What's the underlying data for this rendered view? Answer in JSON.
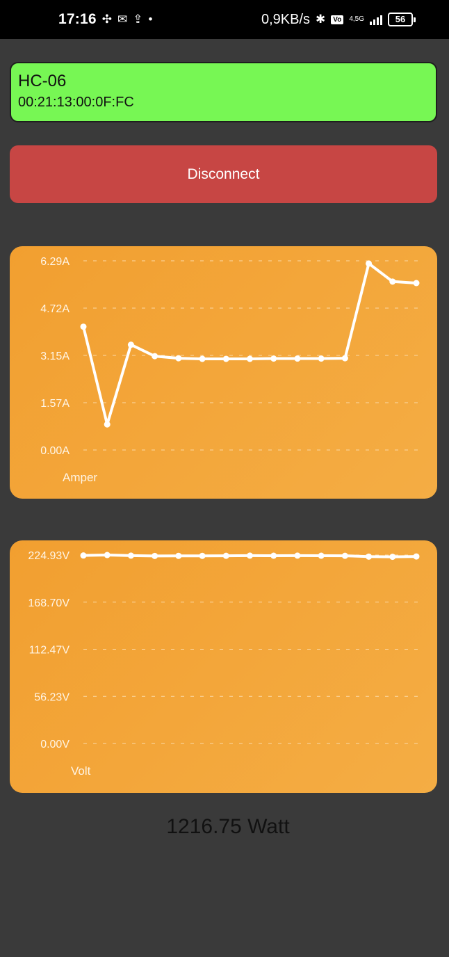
{
  "status_bar": {
    "time": "17:16",
    "speed": "0,9KB/s",
    "network": "4,5G",
    "battery": "56"
  },
  "device": {
    "name": "HC-06",
    "mac": "00:21:13:00:0F:FC"
  },
  "actions": {
    "disconnect_label": "Disconnect"
  },
  "colors": {
    "device_card": "#77f754",
    "disconnect": "#c74644",
    "chart_bg": "#f3a63a",
    "background": "#3a3a3a"
  },
  "chart_data": [
    {
      "type": "line",
      "xlabel": "Amper",
      "y_ticks": [
        "0.00A",
        "1.57A",
        "3.15A",
        "4.72A",
        "6.29A"
      ],
      "ylim": [
        0,
        6.29
      ],
      "grid": true,
      "series": [
        {
          "values": [
            4.1,
            0.85,
            3.5,
            3.12,
            3.05,
            3.03,
            3.03,
            3.03,
            3.04,
            3.04,
            3.04,
            3.05,
            6.2,
            5.6,
            5.55
          ]
        }
      ]
    },
    {
      "type": "line",
      "xlabel": "Volt",
      "y_ticks": [
        "0.00V",
        "56.23V",
        "112.47V",
        "168.70V",
        "224.93V"
      ],
      "ylim": [
        0,
        224.93
      ],
      "grid": true,
      "series": [
        {
          "values": [
            224.4,
            224.9,
            224.2,
            223.8,
            223.9,
            223.9,
            224.0,
            224.2,
            224.1,
            224.2,
            224.1,
            224.0,
            223.0,
            222.8,
            223.2
          ]
        }
      ]
    }
  ],
  "power": {
    "readout": "1216.75 Watt"
  }
}
